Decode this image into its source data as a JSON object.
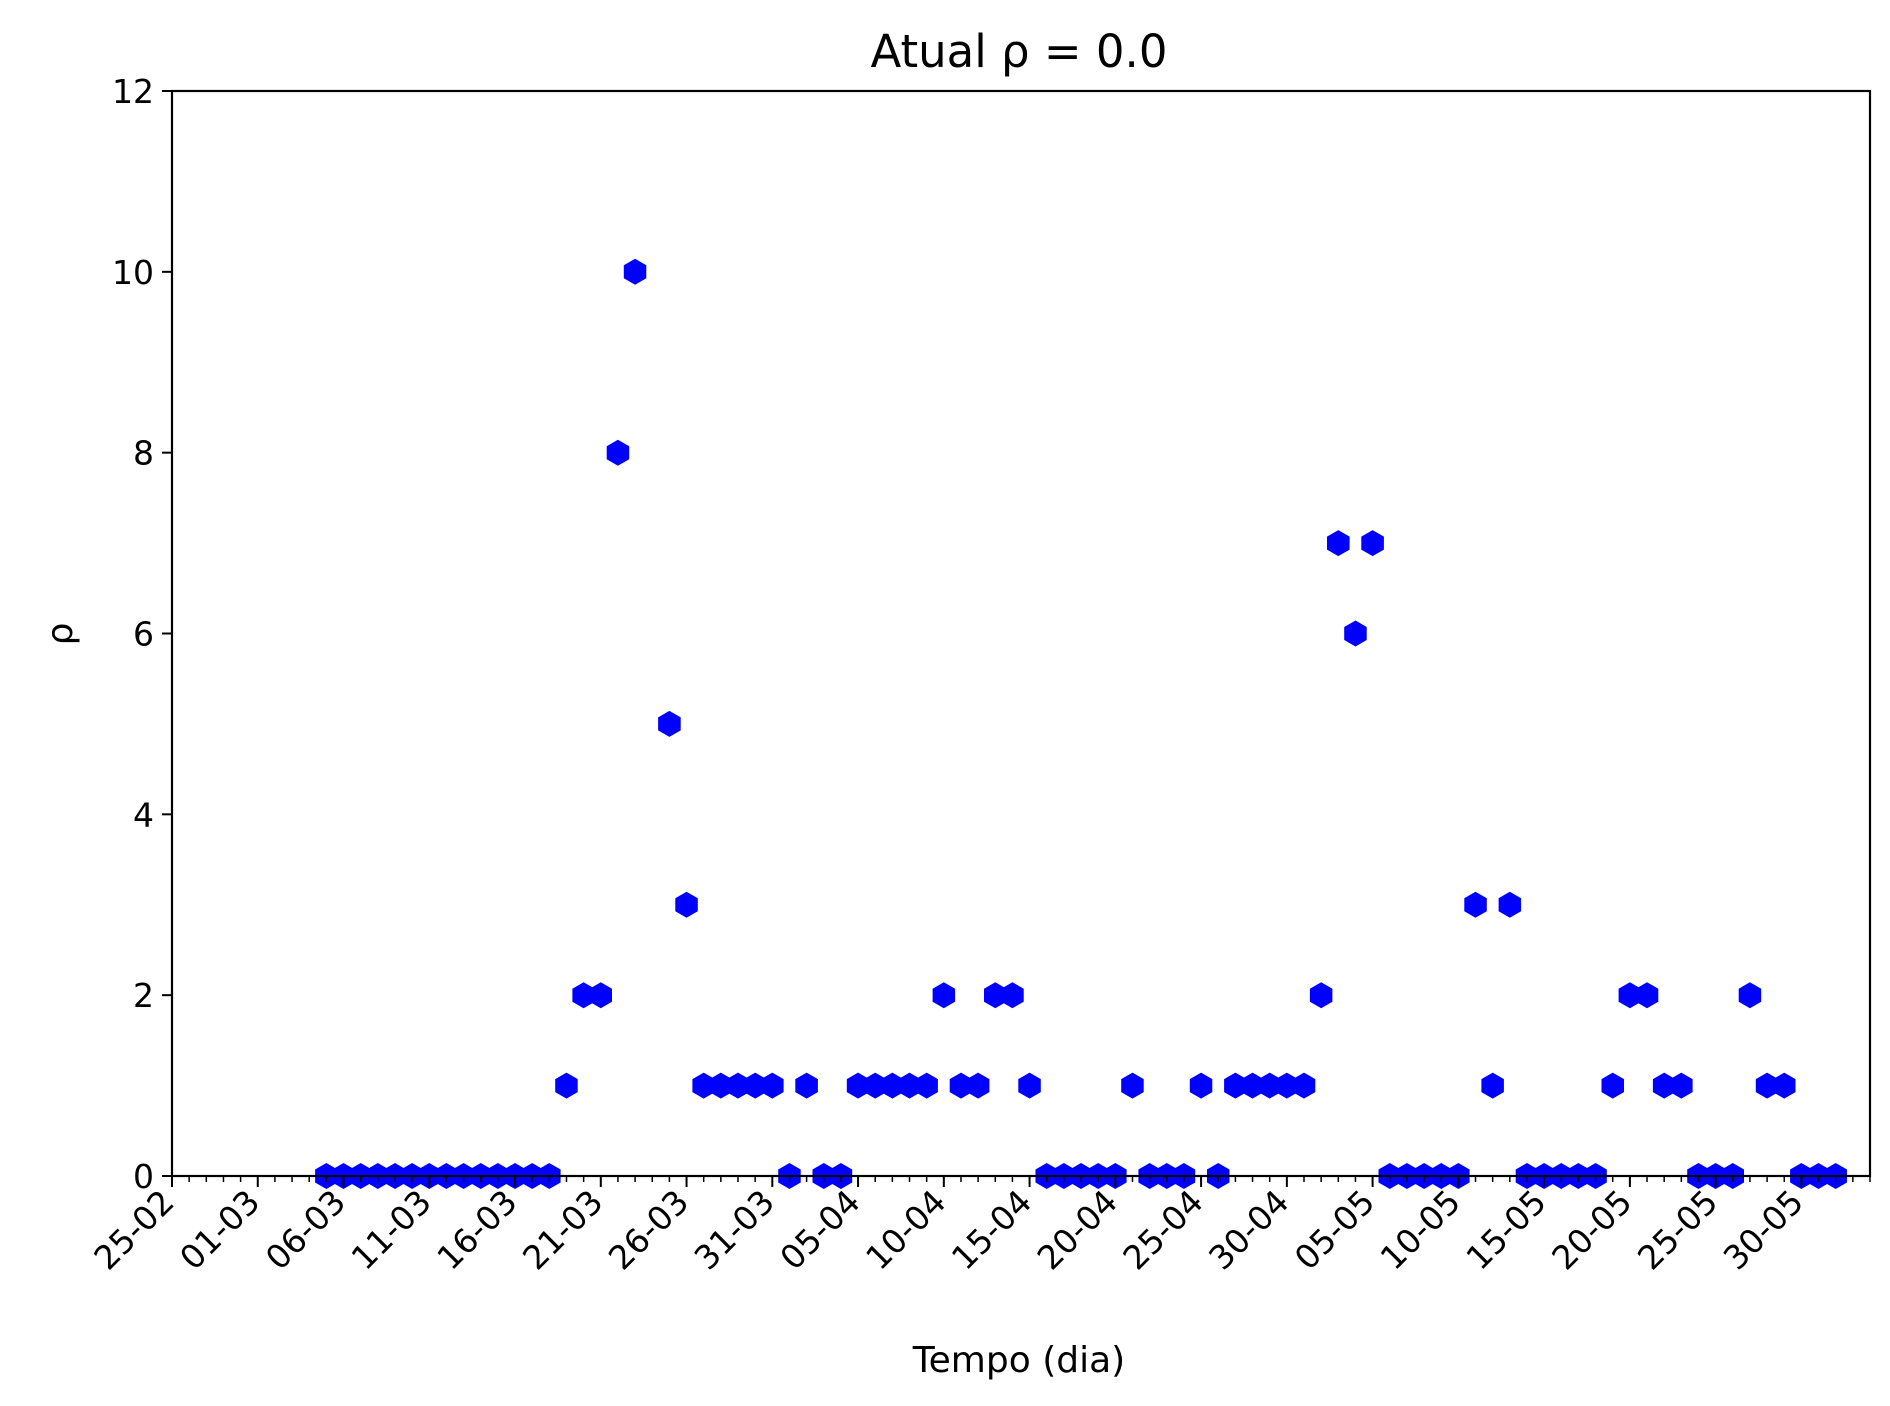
{
  "chart_data": {
    "type": "scatter",
    "title": "Atual ρ = 0.0",
    "xlabel": "Tempo (dia)",
    "ylabel": "ρ",
    "x_axis_kind": "date",
    "xlim": [
      "2020-02-25",
      "2020-06-03"
    ],
    "ylim": [
      0,
      12
    ],
    "y_ticks": [
      0,
      2,
      4,
      6,
      8,
      10,
      12
    ],
    "x_ticks": [
      {
        "date": "2020-02-25",
        "label": "25-02"
      },
      {
        "date": "2020-03-01",
        "label": "01-03"
      },
      {
        "date": "2020-03-06",
        "label": "06-03"
      },
      {
        "date": "2020-03-11",
        "label": "11-03"
      },
      {
        "date": "2020-03-16",
        "label": "16-03"
      },
      {
        "date": "2020-03-21",
        "label": "21-03"
      },
      {
        "date": "2020-03-26",
        "label": "26-03"
      },
      {
        "date": "2020-03-31",
        "label": "31-03"
      },
      {
        "date": "2020-04-05",
        "label": "05-04"
      },
      {
        "date": "2020-04-10",
        "label": "10-04"
      },
      {
        "date": "2020-04-15",
        "label": "15-04"
      },
      {
        "date": "2020-04-20",
        "label": "20-04"
      },
      {
        "date": "2020-04-25",
        "label": "25-04"
      },
      {
        "date": "2020-04-30",
        "label": "30-04"
      },
      {
        "date": "2020-05-05",
        "label": "05-05"
      },
      {
        "date": "2020-05-10",
        "label": "10-05"
      },
      {
        "date": "2020-05-15",
        "label": "15-05"
      },
      {
        "date": "2020-05-20",
        "label": "20-05"
      },
      {
        "date": "2020-05-25",
        "label": "25-05"
      },
      {
        "date": "2020-05-30",
        "label": "30-05"
      }
    ],
    "grid": false,
    "marker": "hexagon",
    "color": "#0000ff",
    "series": [
      {
        "points": [
          {
            "x": "2020-03-05",
            "y": 0
          },
          {
            "x": "2020-03-06",
            "y": 0
          },
          {
            "x": "2020-03-07",
            "y": 0
          },
          {
            "x": "2020-03-08",
            "y": 0
          },
          {
            "x": "2020-03-09",
            "y": 0
          },
          {
            "x": "2020-03-10",
            "y": 0
          },
          {
            "x": "2020-03-11",
            "y": 0
          },
          {
            "x": "2020-03-12",
            "y": 0
          },
          {
            "x": "2020-03-13",
            "y": 0
          },
          {
            "x": "2020-03-14",
            "y": 0
          },
          {
            "x": "2020-03-15",
            "y": 0
          },
          {
            "x": "2020-03-16",
            "y": 0
          },
          {
            "x": "2020-03-17",
            "y": 0
          },
          {
            "x": "2020-03-18",
            "y": 0
          },
          {
            "x": "2020-03-19",
            "y": 1
          },
          {
            "x": "2020-03-20",
            "y": 2
          },
          {
            "x": "2020-03-21",
            "y": 2
          },
          {
            "x": "2020-03-22",
            "y": 8
          },
          {
            "x": "2020-03-23",
            "y": 10
          },
          {
            "x": "2020-03-25",
            "y": 5
          },
          {
            "x": "2020-03-26",
            "y": 3
          },
          {
            "x": "2020-03-27",
            "y": 1
          },
          {
            "x": "2020-03-28",
            "y": 1
          },
          {
            "x": "2020-03-29",
            "y": 1
          },
          {
            "x": "2020-03-30",
            "y": 1
          },
          {
            "x": "2020-03-31",
            "y": 1
          },
          {
            "x": "2020-04-01",
            "y": 0
          },
          {
            "x": "2020-04-02",
            "y": 1
          },
          {
            "x": "2020-04-03",
            "y": 0
          },
          {
            "x": "2020-04-04",
            "y": 0
          },
          {
            "x": "2020-04-05",
            "y": 1
          },
          {
            "x": "2020-04-06",
            "y": 1
          },
          {
            "x": "2020-04-07",
            "y": 1
          },
          {
            "x": "2020-04-08",
            "y": 1
          },
          {
            "x": "2020-04-09",
            "y": 1
          },
          {
            "x": "2020-04-10",
            "y": 2
          },
          {
            "x": "2020-04-11",
            "y": 1
          },
          {
            "x": "2020-04-12",
            "y": 1
          },
          {
            "x": "2020-04-13",
            "y": 2
          },
          {
            "x": "2020-04-14",
            "y": 2
          },
          {
            "x": "2020-04-15",
            "y": 1
          },
          {
            "x": "2020-04-16",
            "y": 0
          },
          {
            "x": "2020-04-17",
            "y": 0
          },
          {
            "x": "2020-04-18",
            "y": 0
          },
          {
            "x": "2020-04-19",
            "y": 0
          },
          {
            "x": "2020-04-20",
            "y": 0
          },
          {
            "x": "2020-04-21",
            "y": 1
          },
          {
            "x": "2020-04-22",
            "y": 0
          },
          {
            "x": "2020-04-23",
            "y": 0
          },
          {
            "x": "2020-04-24",
            "y": 0
          },
          {
            "x": "2020-04-25",
            "y": 1
          },
          {
            "x": "2020-04-26",
            "y": 0
          },
          {
            "x": "2020-04-27",
            "y": 1
          },
          {
            "x": "2020-04-28",
            "y": 1
          },
          {
            "x": "2020-04-29",
            "y": 1
          },
          {
            "x": "2020-04-30",
            "y": 1
          },
          {
            "x": "2020-05-01",
            "y": 1
          },
          {
            "x": "2020-05-02",
            "y": 2
          },
          {
            "x": "2020-05-03",
            "y": 7
          },
          {
            "x": "2020-05-04",
            "y": 6
          },
          {
            "x": "2020-05-05",
            "y": 7
          },
          {
            "x": "2020-05-06",
            "y": 0
          },
          {
            "x": "2020-05-07",
            "y": 0
          },
          {
            "x": "2020-05-08",
            "y": 0
          },
          {
            "x": "2020-05-09",
            "y": 0
          },
          {
            "x": "2020-05-10",
            "y": 0
          },
          {
            "x": "2020-05-11",
            "y": 3
          },
          {
            "x": "2020-05-12",
            "y": 1
          },
          {
            "x": "2020-05-13",
            "y": 3
          },
          {
            "x": "2020-05-14",
            "y": 0
          },
          {
            "x": "2020-05-15",
            "y": 0
          },
          {
            "x": "2020-05-16",
            "y": 0
          },
          {
            "x": "2020-05-17",
            "y": 0
          },
          {
            "x": "2020-05-18",
            "y": 0
          },
          {
            "x": "2020-05-19",
            "y": 1
          },
          {
            "x": "2020-05-20",
            "y": 2
          },
          {
            "x": "2020-05-21",
            "y": 2
          },
          {
            "x": "2020-05-22",
            "y": 1
          },
          {
            "x": "2020-05-23",
            "y": 1
          },
          {
            "x": "2020-05-24",
            "y": 0
          },
          {
            "x": "2020-05-25",
            "y": 0
          },
          {
            "x": "2020-05-26",
            "y": 0
          },
          {
            "x": "2020-05-27",
            "y": 2
          },
          {
            "x": "2020-05-28",
            "y": 1
          },
          {
            "x": "2020-05-29",
            "y": 1
          },
          {
            "x": "2020-05-30",
            "y": 0
          },
          {
            "x": "2020-05-31",
            "y": 0
          },
          {
            "x": "2020-06-01",
            "y": 0
          }
        ]
      }
    ]
  }
}
